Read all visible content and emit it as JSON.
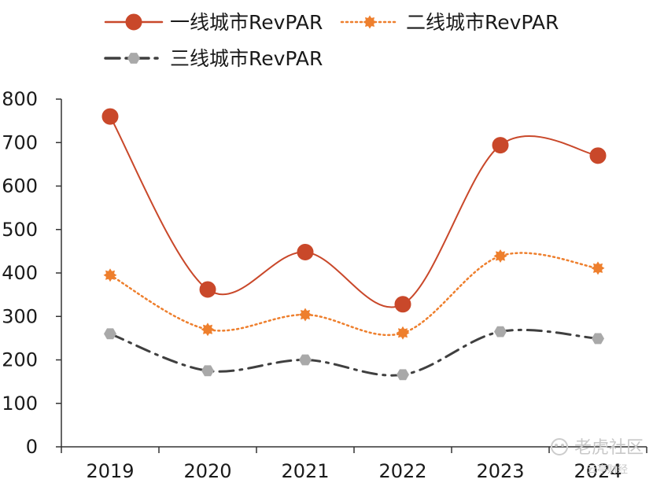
{
  "chart_data": {
    "type": "line",
    "categories": [
      "2019",
      "2020",
      "2021",
      "2022",
      "2023",
      "2024"
    ],
    "series": [
      {
        "name": "一线城市RevPAR",
        "values": [
          760,
          362,
          448,
          328,
          694,
          670
        ],
        "color": "#C9482A",
        "style": "solid-smooth",
        "marker": "circle"
      },
      {
        "name": "二线城市RevPAR",
        "values": [
          395,
          270,
          304,
          262,
          439,
          411
        ],
        "color": "#EE7F2D",
        "style": "dotted",
        "marker": "star"
      },
      {
        "name": "三线城市RevPAR",
        "values": [
          260,
          175,
          200,
          166,
          265,
          249
        ],
        "color": "#3F3F3F",
        "style": "dash-dot",
        "marker": "hexagon",
        "marker_color": "#A9A9A9"
      }
    ],
    "y_ticks": [
      0,
      100,
      200,
      300,
      400,
      500,
      600,
      700,
      800
    ],
    "ylim": [
      0,
      800
    ],
    "grid": false,
    "legend_position": "top",
    "title": "",
    "xlabel": "",
    "ylabel": ""
  },
  "watermark": {
    "main": "老虎社区",
    "sub": "云亭财经"
  }
}
